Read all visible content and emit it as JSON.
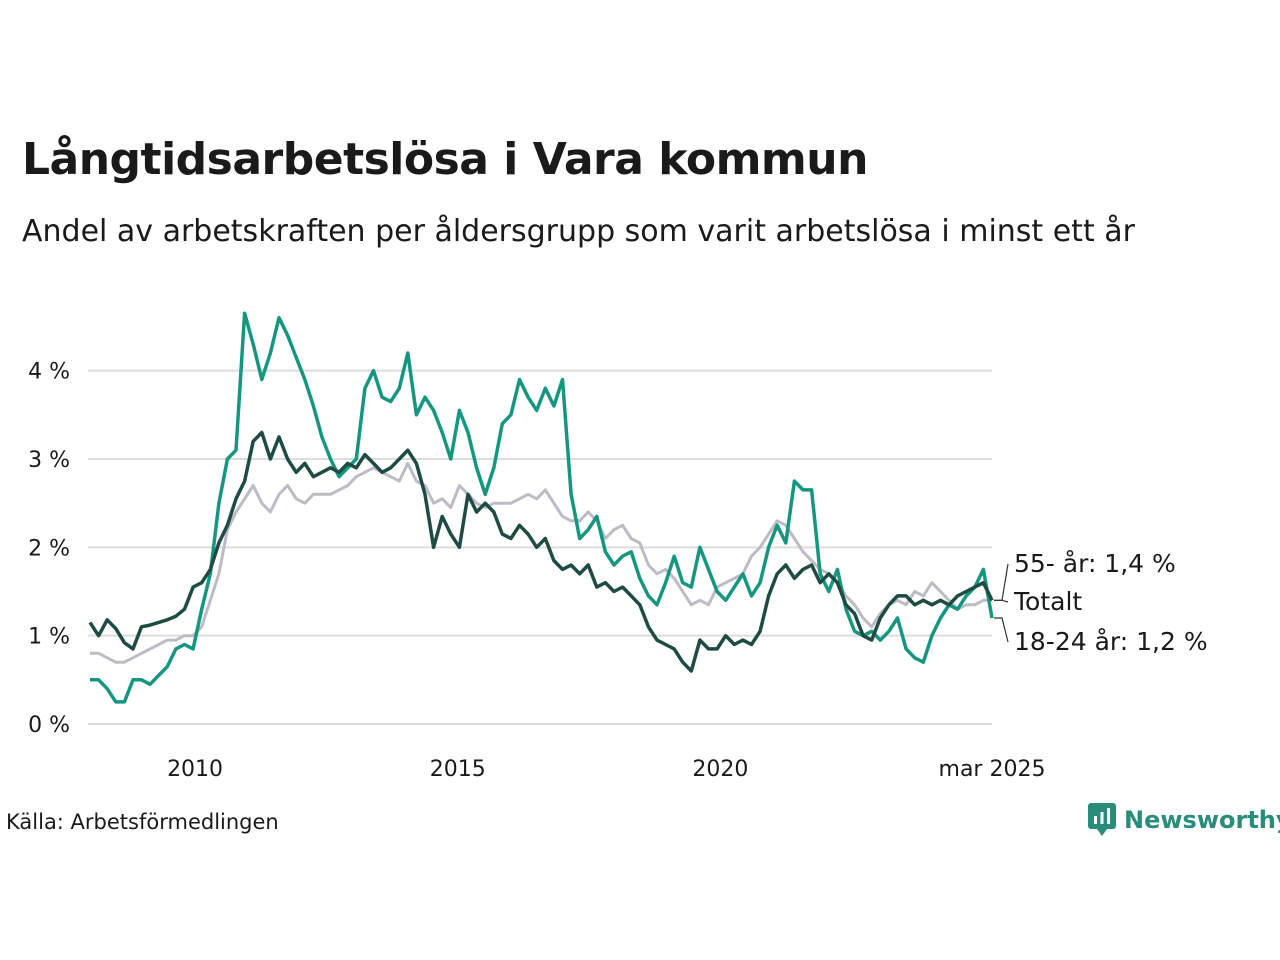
{
  "title": "Långtidsarbetslösa i Vara kommun",
  "subtitle": "Andel av arbetskraften per åldersgrupp som varit arbetslösa i minst ett år",
  "source": "Källa: Arbetsförmedlingen",
  "brand": "Newsworthy",
  "colors": {
    "age55": "#1f4b45",
    "total": "#bdbbc6",
    "age18_24": "#15977f",
    "grid": "#dddddd",
    "brand": "#2a8c7a"
  },
  "chart_data": {
    "type": "line",
    "title": "Långtidsarbetslösa i Vara kommun",
    "subtitle": "Andel av arbetskraften per åldersgrupp som varit arbetslösa i minst ett år",
    "ylim": [
      0,
      4.8
    ],
    "yticks": [
      0,
      1,
      2,
      3,
      4
    ],
    "ytick_labels": [
      "0 %",
      "1 %",
      "2 %",
      "3 %",
      "4 %"
    ],
    "xlim": [
      2008.0,
      2025.17
    ],
    "xticks": [
      2010,
      2015,
      2020,
      2025.17
    ],
    "xtick_labels": [
      "2010",
      "2015",
      "2020",
      "mar 2025"
    ],
    "grid": true,
    "x_start": 2008.0,
    "x_step_months": 3,
    "series": [
      {
        "name": "55- år",
        "end_label": "55- år: 1,4 %",
        "color_key": "age55",
        "values": [
          1.15,
          1.0,
          1.18,
          1.08,
          0.92,
          0.85,
          1.1,
          1.12,
          1.15,
          1.18,
          1.22,
          1.3,
          1.55,
          1.6,
          1.75,
          2.05,
          2.25,
          2.55,
          2.75,
          3.2,
          3.3,
          3.0,
          3.25,
          3.0,
          2.85,
          2.95,
          2.8,
          2.85,
          2.9,
          2.85,
          2.95,
          2.9,
          3.05,
          2.95,
          2.85,
          2.9,
          3.0,
          3.1,
          2.95,
          2.6,
          2.0,
          2.35,
          2.15,
          2.0,
          2.6,
          2.4,
          2.5,
          2.4,
          2.15,
          2.1,
          2.25,
          2.15,
          2.0,
          2.1,
          1.85,
          1.75,
          1.8,
          1.7,
          1.8,
          1.55,
          1.6,
          1.5,
          1.55,
          1.45,
          1.35,
          1.1,
          0.95,
          0.9,
          0.85,
          0.7,
          0.6,
          0.95,
          0.85,
          0.85,
          1.0,
          0.9,
          0.95,
          0.9,
          1.05,
          1.45,
          1.7,
          1.8,
          1.65,
          1.75,
          1.8,
          1.6,
          1.7,
          1.6,
          1.35,
          1.25,
          1.0,
          0.95,
          1.2,
          1.35,
          1.45,
          1.45,
          1.35,
          1.4,
          1.35,
          1.4,
          1.35,
          1.45,
          1.5,
          1.55,
          1.6,
          1.4
        ],
        "last_value": 1.4
      },
      {
        "name": "Totalt",
        "end_label": "Totalt",
        "color_key": "total",
        "values": [
          0.8,
          0.8,
          0.75,
          0.7,
          0.7,
          0.75,
          0.8,
          0.85,
          0.9,
          0.95,
          0.95,
          1.0,
          1.0,
          1.1,
          1.4,
          1.7,
          2.2,
          2.4,
          2.55,
          2.7,
          2.5,
          2.4,
          2.6,
          2.7,
          2.55,
          2.5,
          2.6,
          2.6,
          2.6,
          2.65,
          2.7,
          2.8,
          2.85,
          2.9,
          2.85,
          2.8,
          2.75,
          2.95,
          2.75,
          2.7,
          2.5,
          2.55,
          2.45,
          2.7,
          2.6,
          2.5,
          2.45,
          2.5,
          2.5,
          2.5,
          2.55,
          2.6,
          2.55,
          2.65,
          2.5,
          2.35,
          2.3,
          2.3,
          2.4,
          2.3,
          2.1,
          2.2,
          2.25,
          2.1,
          2.05,
          1.8,
          1.7,
          1.75,
          1.65,
          1.5,
          1.35,
          1.4,
          1.35,
          1.55,
          1.6,
          1.65,
          1.7,
          1.9,
          2.0,
          2.15,
          2.3,
          2.25,
          2.1,
          1.95,
          1.85,
          1.75,
          1.7,
          1.6,
          1.45,
          1.35,
          1.2,
          1.1,
          1.25,
          1.35,
          1.4,
          1.35,
          1.5,
          1.45,
          1.6,
          1.5,
          1.4,
          1.3,
          1.35,
          1.35,
          1.4,
          1.4
        ],
        "last_value": 1.4
      },
      {
        "name": "18-24 år",
        "end_label": "18-24 år: 1,2 %",
        "color_key": "age18_24",
        "values": [
          0.5,
          0.5,
          0.4,
          0.25,
          0.25,
          0.5,
          0.5,
          0.45,
          0.55,
          0.65,
          0.85,
          0.9,
          0.85,
          1.3,
          1.7,
          2.5,
          3.0,
          3.1,
          4.65,
          4.3,
          3.9,
          4.2,
          4.6,
          4.4,
          4.15,
          3.9,
          3.6,
          3.25,
          3.0,
          2.8,
          2.9,
          3.0,
          3.8,
          4.0,
          3.7,
          3.65,
          3.8,
          4.2,
          3.5,
          3.7,
          3.55,
          3.3,
          3.0,
          3.55,
          3.3,
          2.9,
          2.6,
          2.9,
          3.4,
          3.5,
          3.9,
          3.7,
          3.55,
          3.8,
          3.6,
          3.9,
          2.6,
          2.1,
          2.2,
          2.35,
          1.95,
          1.8,
          1.9,
          1.95,
          1.65,
          1.45,
          1.35,
          1.6,
          1.9,
          1.6,
          1.55,
          2.0,
          1.75,
          1.5,
          1.4,
          1.55,
          1.7,
          1.45,
          1.6,
          2.0,
          2.25,
          2.05,
          2.75,
          2.65,
          2.65,
          1.7,
          1.5,
          1.75,
          1.3,
          1.05,
          1.0,
          1.05,
          0.95,
          1.05,
          1.2,
          0.85,
          0.75,
          0.7,
          1.0,
          1.2,
          1.35,
          1.3,
          1.45,
          1.55,
          1.75,
          1.2
        ],
        "last_value": 1.2
      }
    ]
  }
}
